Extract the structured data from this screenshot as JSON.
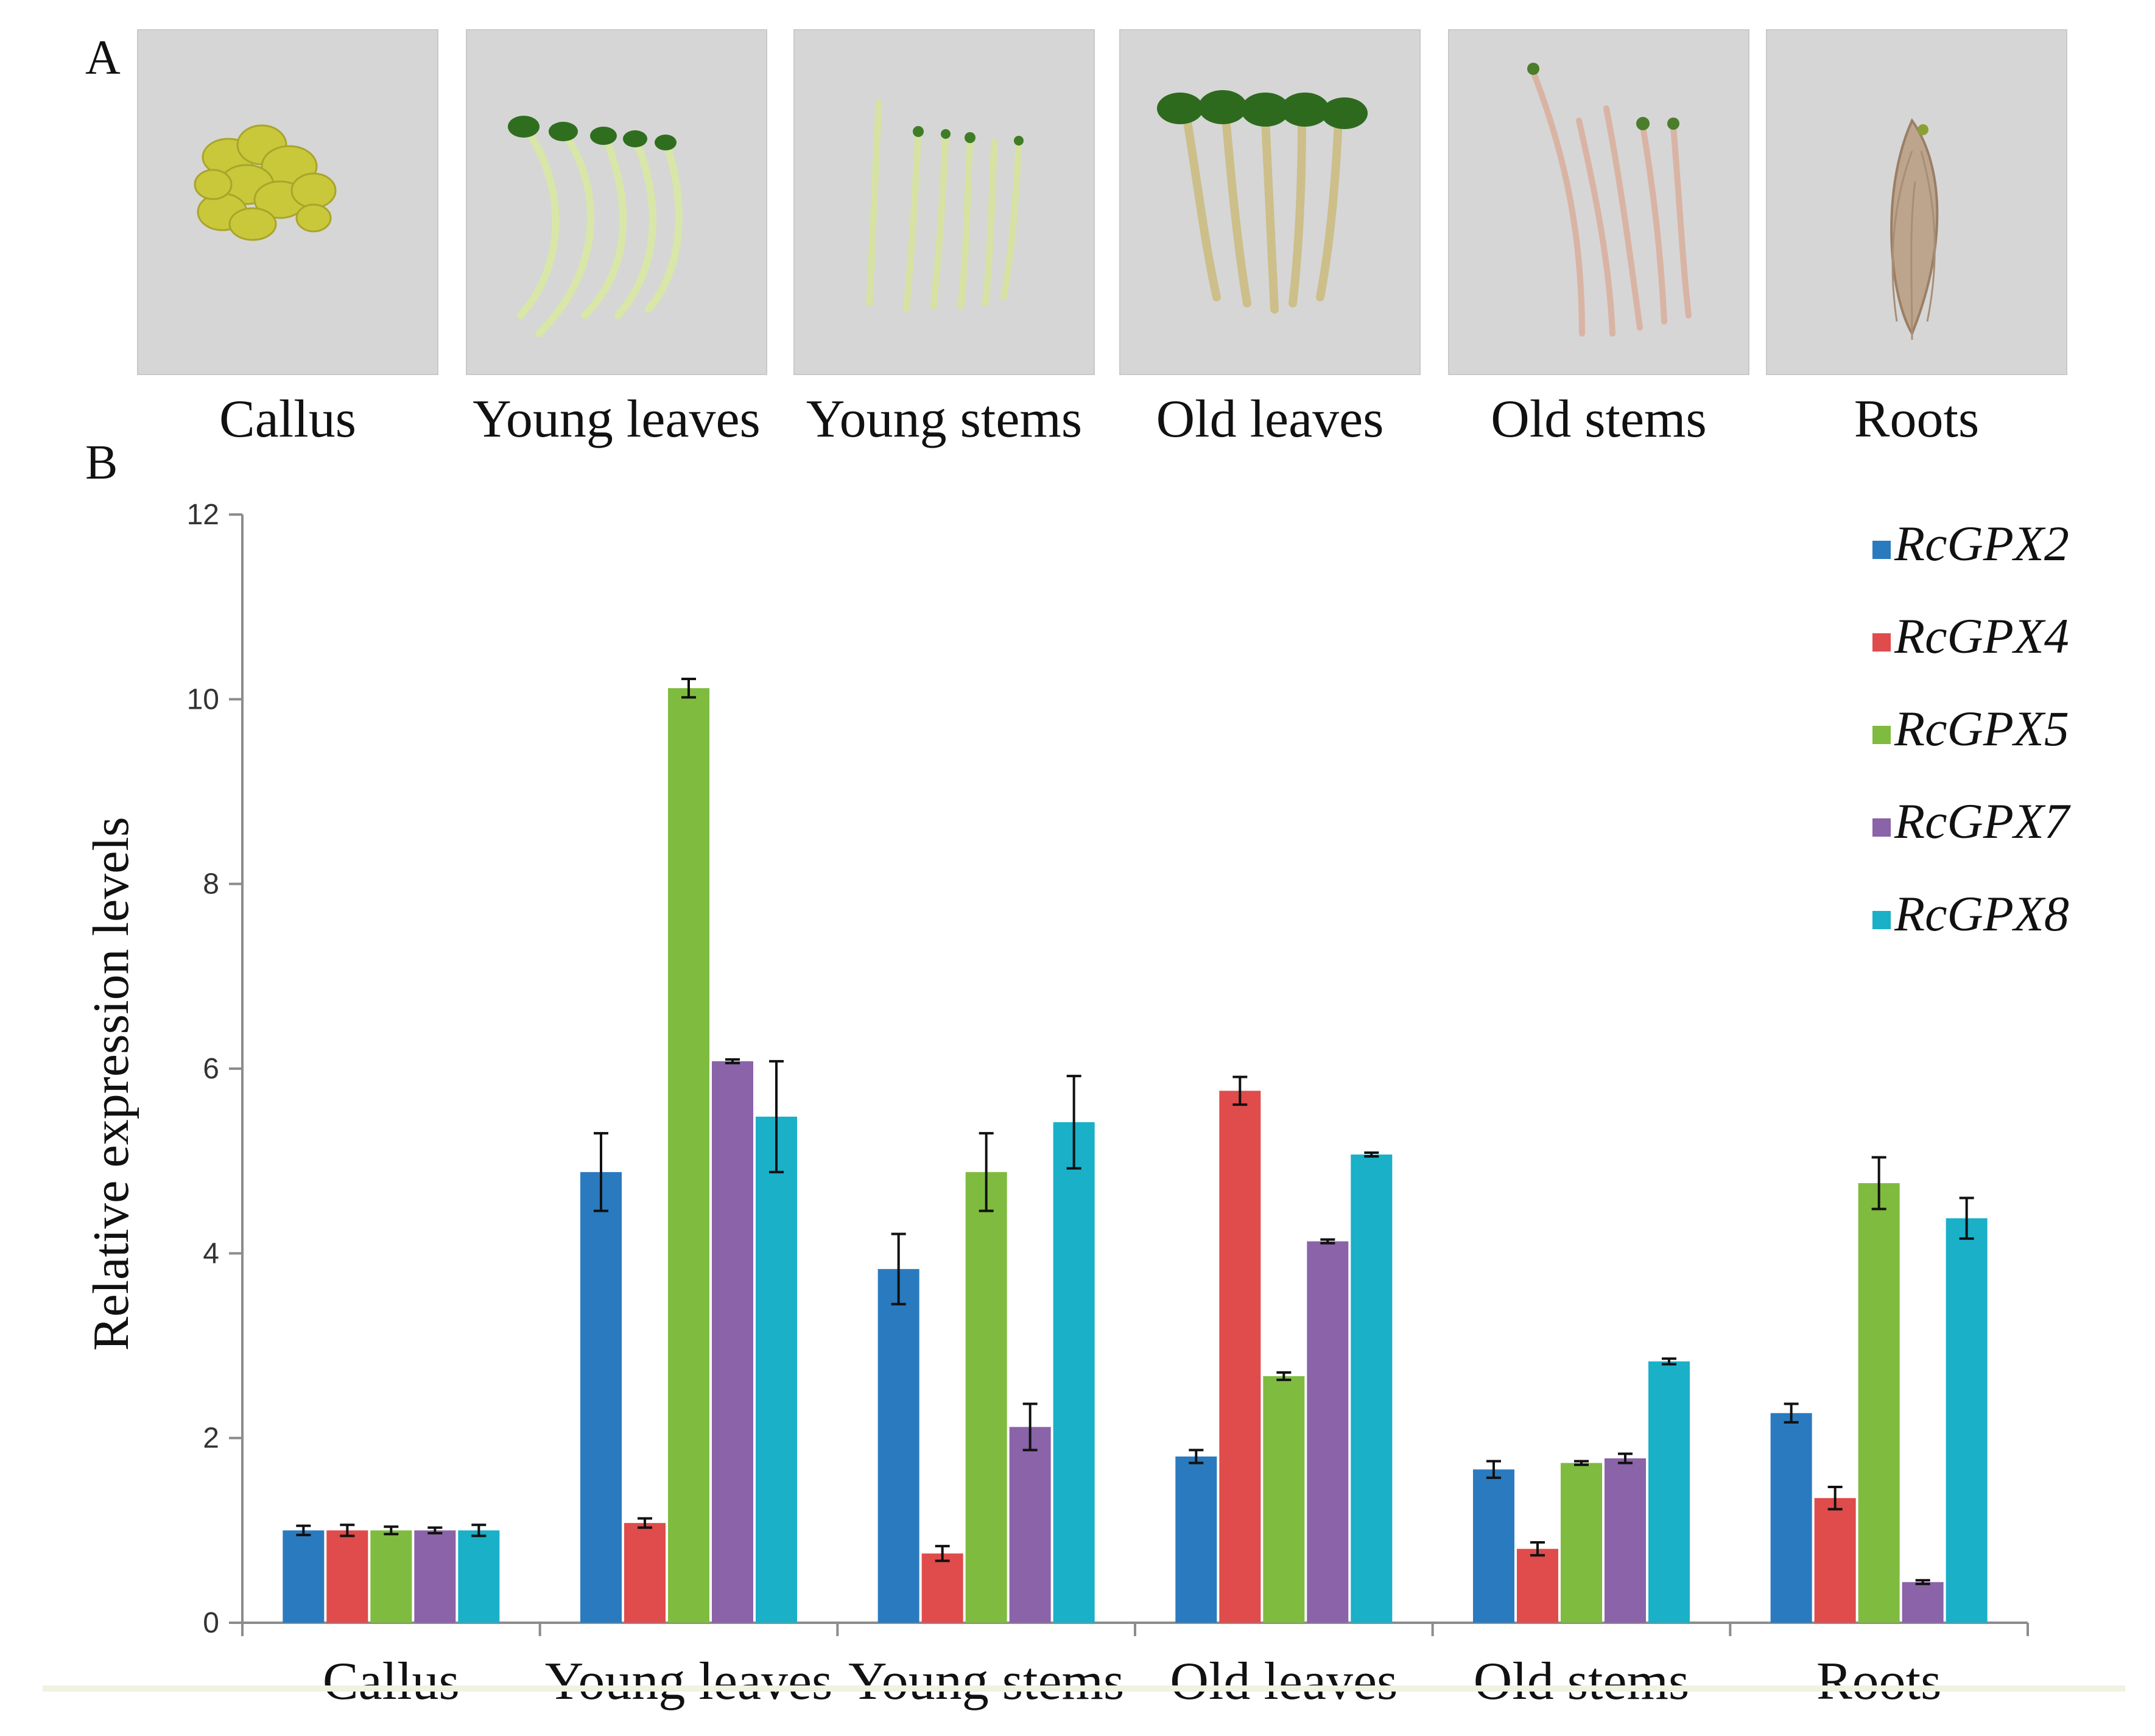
{
  "panel_labels": {
    "a": "A",
    "b": "B"
  },
  "photos": [
    {
      "id": "callus",
      "caption": "Callus",
      "depicts": "callus"
    },
    {
      "id": "young-leaves",
      "caption": "Young leaves",
      "depicts": "seedlings-leaves"
    },
    {
      "id": "young-stems",
      "caption": "Young stems",
      "depicts": "seedlings-stems"
    },
    {
      "id": "old-leaves",
      "caption": "Old leaves",
      "depicts": "seedlings-old-leaves"
    },
    {
      "id": "old-stems",
      "caption": "Old stems",
      "depicts": "seedlings-old-stems"
    },
    {
      "id": "roots",
      "caption": "Roots",
      "depicts": "roots"
    }
  ],
  "chart_data": {
    "type": "bar",
    "title": "",
    "xlabel": "",
    "ylabel": "Relative expression levels",
    "ylim": [
      0,
      12
    ],
    "yticks": [
      0,
      2,
      4,
      6,
      8,
      10,
      12
    ],
    "grid": false,
    "legend_position": "top-right",
    "categories": [
      "Callus",
      "Young leaves",
      "Young stems",
      "Old leaves",
      "Old stems",
      "Roots"
    ],
    "series": [
      {
        "name": "RcGPX2",
        "color": "#2a7abf",
        "values": [
          1.0,
          4.88,
          3.83,
          1.8,
          1.66,
          2.27
        ],
        "errors": [
          0.05,
          0.42,
          0.38,
          0.07,
          0.09,
          0.1
        ]
      },
      {
        "name": "RcGPX4",
        "color": "#e04b4b",
        "values": [
          1.0,
          1.08,
          0.75,
          5.76,
          0.8,
          1.35
        ],
        "errors": [
          0.06,
          0.05,
          0.08,
          0.15,
          0.07,
          0.12
        ]
      },
      {
        "name": "RcGPX5",
        "color": "#7fbb3f",
        "values": [
          1.0,
          10.12,
          4.88,
          2.67,
          1.73,
          4.76
        ],
        "errors": [
          0.04,
          0.1,
          0.42,
          0.04,
          0.02,
          0.28
        ]
      },
      {
        "name": "RcGPX7",
        "color": "#8a63a8",
        "values": [
          1.0,
          6.08,
          2.12,
          4.13,
          1.78,
          0.44
        ],
        "errors": [
          0.03,
          0.02,
          0.25,
          0.02,
          0.05,
          0.02
        ]
      },
      {
        "name": "RcGPX8",
        "color": "#19b0c8",
        "values": [
          1.0,
          5.48,
          5.42,
          5.07,
          2.83,
          4.38
        ],
        "errors": [
          0.06,
          0.6,
          0.5,
          0.02,
          0.03,
          0.22
        ]
      }
    ]
  }
}
